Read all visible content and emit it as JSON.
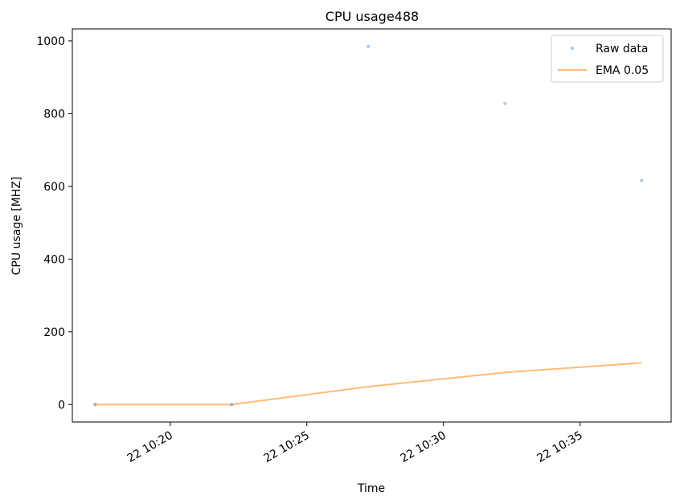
{
  "chart_data": {
    "type": "line",
    "title": "CPU usage488",
    "xlabel": "Time",
    "ylabel": "CPU usage [MHZ]",
    "x_tick_labels": [
      "22 10:20",
      "22 10:25",
      "22 10:30",
      "22 10:35"
    ],
    "y_tick_labels": [
      "0",
      "200",
      "400",
      "600",
      "800",
      "1000"
    ],
    "y_ticks": [
      0,
      200,
      400,
      600,
      800,
      1000
    ],
    "x_ticks": [
      "10:20",
      "10:25",
      "10:30",
      "10:35"
    ],
    "xlim": [
      "10:16:25",
      "10:38:20"
    ],
    "ylim": [
      -48,
      1033
    ],
    "legend_position": "top-right",
    "grid": false,
    "series": [
      {
        "name": "Raw data",
        "style": "markers",
        "color": "#aec7e8",
        "x": [
          "10:17:15",
          "10:22:15",
          "10:27:15",
          "10:32:15",
          "10:37:15"
        ],
        "values": [
          0,
          0,
          985,
          828,
          616
        ]
      },
      {
        "name": "EMA 0.05",
        "style": "line",
        "color": "#ffbb78",
        "x": [
          "10:17:15",
          "10:22:15",
          "10:27:15",
          "10:32:15",
          "10:37:15"
        ],
        "values": [
          0,
          0,
          49.3,
          88.2,
          114.6
        ]
      }
    ]
  }
}
